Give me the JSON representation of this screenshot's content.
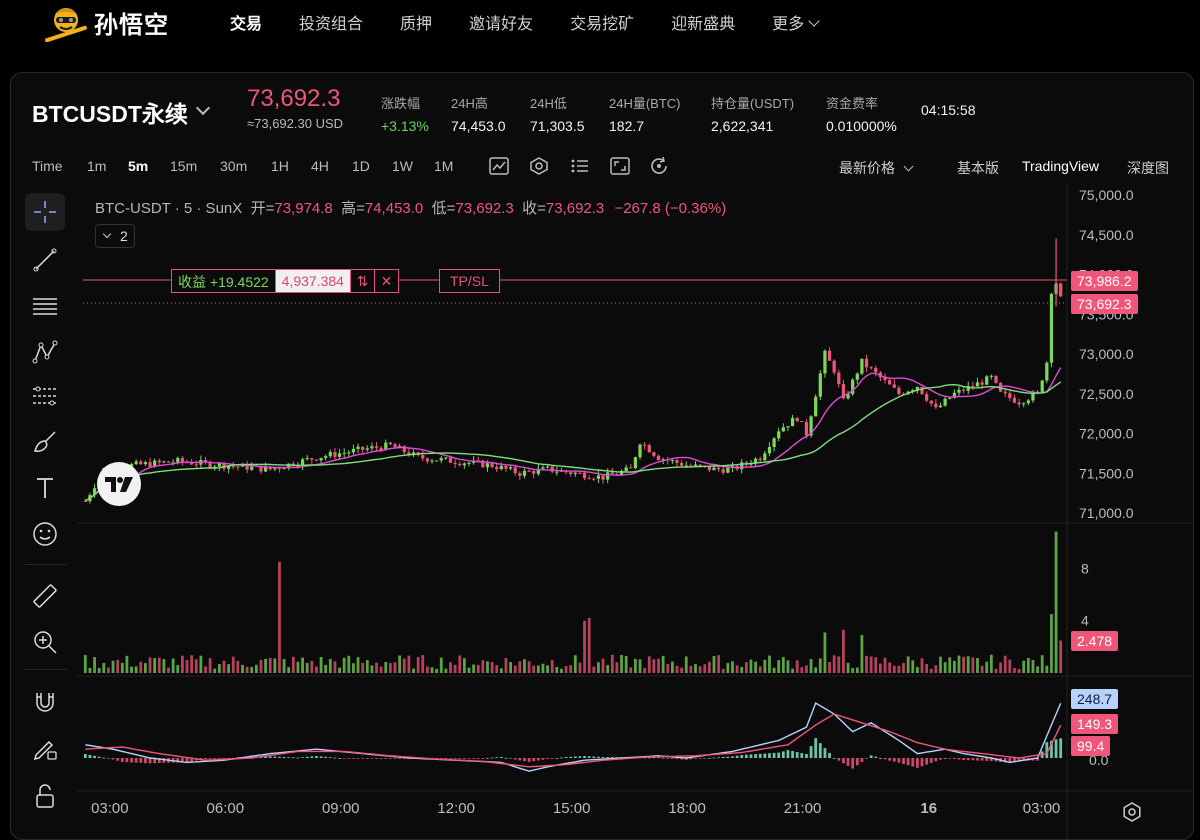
{
  "brand": {
    "name": "孙悟空"
  },
  "nav": [
    {
      "label": "交易",
      "active": true
    },
    {
      "label": "投资组合"
    },
    {
      "label": "质押"
    },
    {
      "label": "邀请好友"
    },
    {
      "label": "交易挖矿"
    },
    {
      "label": "迎新盛典"
    },
    {
      "label": "更多"
    }
  ],
  "ticker": {
    "symbol": "BTCUSDT永续",
    "price": "73,692.3",
    "price_usd": "≈73,692.30 USD",
    "stats": [
      {
        "key": "涨跌幅",
        "value": "+3.13%"
      },
      {
        "key": "24H高",
        "value": "74,453.0"
      },
      {
        "key": "24H低",
        "value": "71,303.5"
      },
      {
        "key": "24H量(BTC)",
        "value": "182.7"
      },
      {
        "key": "持仓量(USDT)",
        "value": "2,622,341"
      },
      {
        "key": "资金费率",
        "value": "0.010000%"
      }
    ],
    "clock": "04:15:58"
  },
  "toolbar": {
    "time_label": "Time",
    "intervals": [
      "1m",
      "5m",
      "15m",
      "30m",
      "1H",
      "4H",
      "1D",
      "1W",
      "1M"
    ],
    "active_interval": "5m",
    "price_type": "最新价格",
    "views": [
      "基本版",
      "TradingView",
      "深度图"
    ],
    "active_view": "TradingView"
  },
  "legend": {
    "title": "BTC-USDT · 5 · SunX",
    "open_label": "开=",
    "open": "73,974.8",
    "high_label": "高=",
    "high": "74,453.0",
    "low_label": "低=",
    "low": "73,692.3",
    "close_label": "收=",
    "close": "73,692.3",
    "change": "−267.8 (−0.36%)",
    "indicator_count": "2"
  },
  "position": {
    "pnl": "收益 +19.4522",
    "size": "4,937.384",
    "reverse_icon": "swap-vertical-icon",
    "close_icon": "close-icon",
    "tpsl": "TP/SL"
  },
  "axis_tags": {
    "entry_price": "73,986.2",
    "last_price": "73,692.3",
    "volume": "2.478",
    "macd_line": "248.7",
    "signal_line": "149.3",
    "histogram": "99.4"
  },
  "colors": {
    "up": "#7bd85b",
    "down": "#f0567a",
    "ma_fast": "#e04ad8",
    "ma_slow": "#7be07b",
    "macd": "#b6d3ff",
    "signal": "#f0567a"
  },
  "chart_data": {
    "type": "candlestick",
    "interval": "5m",
    "price_axis": {
      "ticks": [
        "75,000.0",
        "74,500.0",
        "74,000.0",
        "73,500.0",
        "73,000.0",
        "72,500.0",
        "72,000.0",
        "71,500.0",
        "71,000.0"
      ],
      "range": [
        71000,
        75000
      ]
    },
    "volume_axis": {
      "ticks": [
        "8",
        "4"
      ],
      "range": [
        0,
        11
      ]
    },
    "macd_axis": {
      "ticks": [
        "0.0"
      ]
    },
    "time_axis": [
      "03:00",
      "06:00",
      "09:00",
      "12:00",
      "15:00",
      "18:00",
      "21:00",
      "16",
      "03:00"
    ],
    "close_path": [
      [
        0,
        71150
      ],
      [
        4,
        71550
      ],
      [
        10,
        71600
      ],
      [
        20,
        71650
      ],
      [
        30,
        71600
      ],
      [
        40,
        71550
      ],
      [
        50,
        71700
      ],
      [
        60,
        71800
      ],
      [
        66,
        71850
      ],
      [
        72,
        71700
      ],
      [
        80,
        71650
      ],
      [
        88,
        71600
      ],
      [
        94,
        71500
      ],
      [
        100,
        71550
      ],
      [
        106,
        71500
      ],
      [
        112,
        71450
      ],
      [
        118,
        71550
      ],
      [
        120,
        71900
      ],
      [
        124,
        71700
      ],
      [
        130,
        71600
      ],
      [
        136,
        71550
      ],
      [
        140,
        71550
      ],
      [
        146,
        71700
      ],
      [
        150,
        72050
      ],
      [
        154,
        72200
      ],
      [
        156,
        72000
      ],
      [
        158,
        72500
      ],
      [
        160,
        73000
      ],
      [
        162,
        72800
      ],
      [
        164,
        72400
      ],
      [
        168,
        72900
      ],
      [
        172,
        72700
      ],
      [
        176,
        72500
      ],
      [
        180,
        72600
      ],
      [
        184,
        72300
      ],
      [
        188,
        72500
      ],
      [
        192,
        72600
      ],
      [
        196,
        72700
      ],
      [
        198,
        72500
      ],
      [
        202,
        72400
      ],
      [
        206,
        72500
      ],
      [
        208,
        72900
      ],
      [
        209,
        73800
      ],
      [
        210,
        73900
      ],
      [
        211,
        73692
      ]
    ],
    "volume_spikes": [
      [
        42,
        8.5
      ],
      [
        108,
        4.0
      ],
      [
        109,
        4.2
      ],
      [
        160,
        3.1
      ],
      [
        164,
        3.3
      ],
      [
        168,
        2.9
      ],
      [
        209,
        4.5
      ],
      [
        210,
        10.8
      ],
      [
        211,
        2.478
      ]
    ],
    "macd_path": [
      [
        0,
        60
      ],
      [
        6,
        40
      ],
      [
        14,
        0
      ],
      [
        22,
        -20
      ],
      [
        30,
        -10
      ],
      [
        40,
        20
      ],
      [
        50,
        40
      ],
      [
        60,
        20
      ],
      [
        70,
        0
      ],
      [
        80,
        -10
      ],
      [
        90,
        -20
      ],
      [
        96,
        -60
      ],
      [
        100,
        -40
      ],
      [
        108,
        -10
      ],
      [
        116,
        0
      ],
      [
        124,
        10
      ],
      [
        130,
        0
      ],
      [
        140,
        30
      ],
      [
        150,
        80
      ],
      [
        156,
        140
      ],
      [
        158,
        250
      ],
      [
        162,
        200
      ],
      [
        166,
        120
      ],
      [
        170,
        160
      ],
      [
        176,
        80
      ],
      [
        180,
        20
      ],
      [
        186,
        40
      ],
      [
        190,
        20
      ],
      [
        196,
        0
      ],
      [
        200,
        -20
      ],
      [
        206,
        0
      ],
      [
        210,
        200
      ],
      [
        211,
        248.7
      ]
    ],
    "signal_path": [
      [
        0,
        40
      ],
      [
        8,
        50
      ],
      [
        16,
        20
      ],
      [
        26,
        -10
      ],
      [
        36,
        0
      ],
      [
        46,
        30
      ],
      [
        56,
        30
      ],
      [
        66,
        10
      ],
      [
        76,
        -5
      ],
      [
        86,
        -15
      ],
      [
        96,
        -40
      ],
      [
        104,
        -30
      ],
      [
        112,
        -10
      ],
      [
        122,
        5
      ],
      [
        132,
        10
      ],
      [
        142,
        25
      ],
      [
        152,
        60
      ],
      [
        158,
        150
      ],
      [
        162,
        200
      ],
      [
        168,
        160
      ],
      [
        174,
        120
      ],
      [
        180,
        70
      ],
      [
        186,
        40
      ],
      [
        194,
        20
      ],
      [
        202,
        0
      ],
      [
        208,
        20
      ],
      [
        211,
        149.3
      ]
    ]
  }
}
